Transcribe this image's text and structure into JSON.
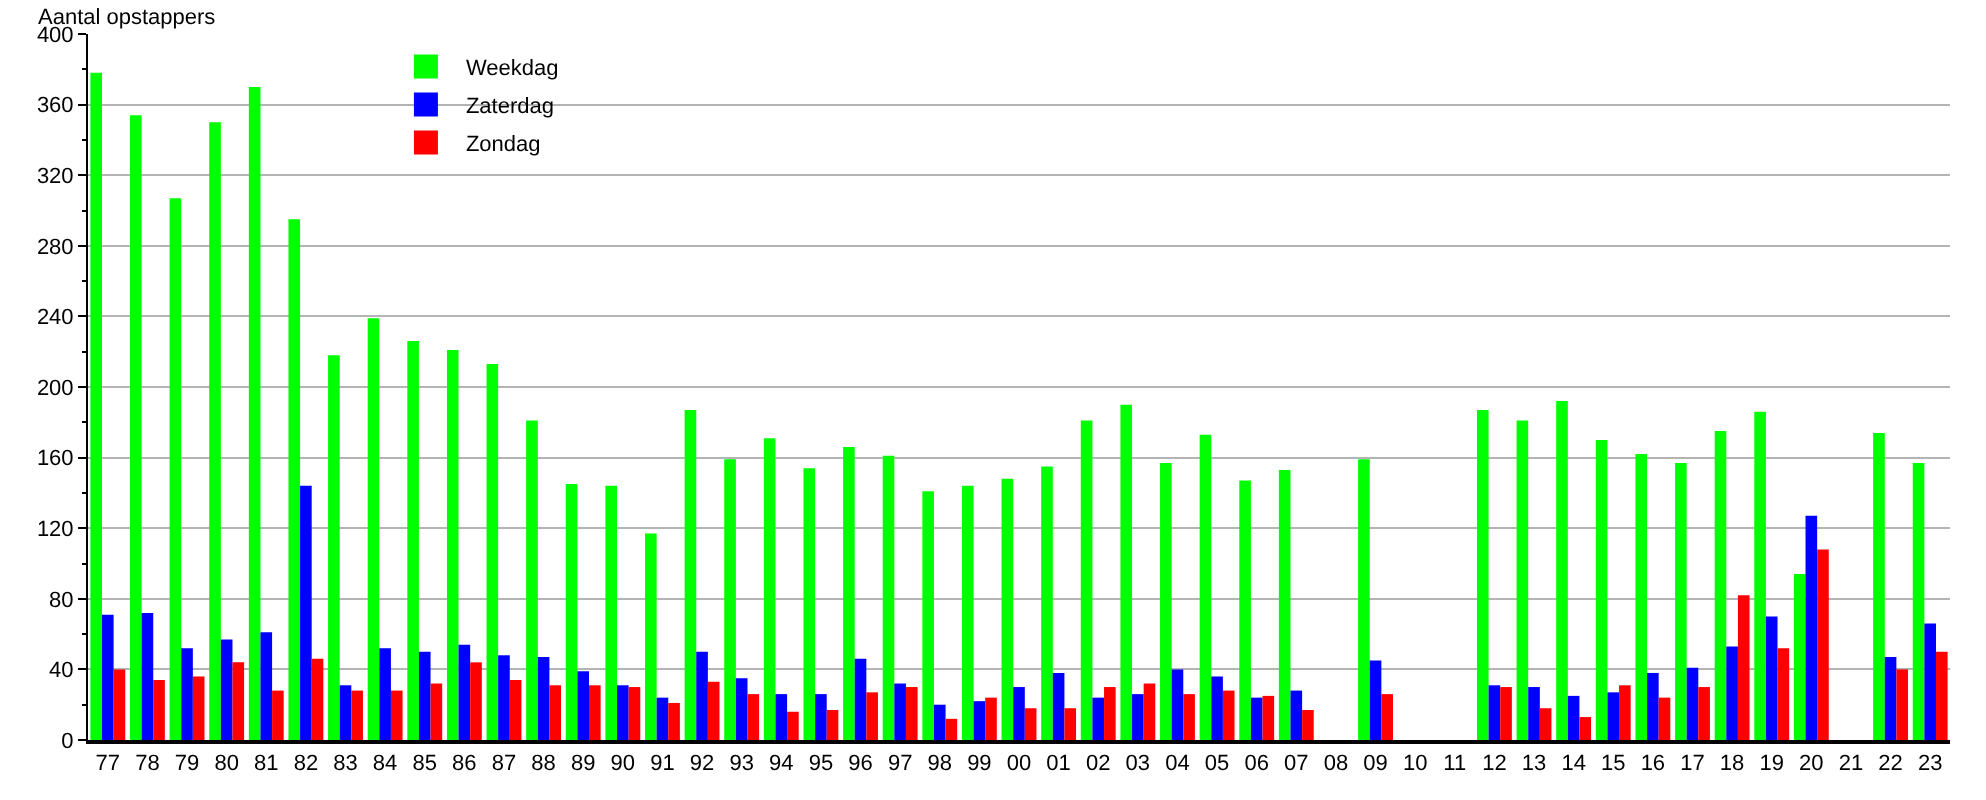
{
  "chart_data": {
    "type": "bar",
    "ylabel": "Aantal opstappers",
    "categories": [
      "77",
      "78",
      "79",
      "80",
      "81",
      "82",
      "83",
      "84",
      "85",
      "86",
      "87",
      "88",
      "89",
      "90",
      "91",
      "92",
      "93",
      "94",
      "95",
      "96",
      "97",
      "98",
      "99",
      "00",
      "01",
      "02",
      "03",
      "04",
      "05",
      "06",
      "07",
      "08",
      "09",
      "10",
      "11",
      "12",
      "13",
      "14",
      "15",
      "16",
      "17",
      "18",
      "19",
      "20",
      "21",
      "22",
      "23"
    ],
    "series": [
      {
        "name": "Weekdag",
        "color": "#00ff00",
        "values": [
          378,
          354,
          307,
          350,
          370,
          295,
          218,
          239,
          226,
          221,
          213,
          181,
          145,
          144,
          117,
          187,
          159,
          171,
          154,
          166,
          161,
          141,
          144,
          148,
          155,
          181,
          190,
          157,
          173,
          147,
          153,
          null,
          159,
          null,
          null,
          187,
          181,
          192,
          170,
          162,
          157,
          175,
          186,
          94,
          null,
          174,
          157
        ]
      },
      {
        "name": "Zaterdag",
        "color": "#0000ff",
        "values": [
          71,
          72,
          52,
          57,
          61,
          144,
          31,
          52,
          50,
          54,
          48,
          47,
          39,
          31,
          24,
          50,
          35,
          26,
          26,
          46,
          32,
          20,
          22,
          30,
          38,
          24,
          26,
          40,
          36,
          24,
          28,
          null,
          45,
          null,
          null,
          31,
          30,
          25,
          27,
          38,
          41,
          53,
          70,
          127,
          null,
          47,
          66
        ]
      },
      {
        "name": "Zondag",
        "color": "#ff0000",
        "values": [
          40,
          34,
          36,
          44,
          28,
          46,
          28,
          28,
          32,
          44,
          34,
          31,
          31,
          30,
          21,
          33,
          26,
          16,
          17,
          27,
          30,
          12,
          24,
          18,
          18,
          30,
          32,
          26,
          28,
          25,
          17,
          null,
          26,
          null,
          null,
          30,
          18,
          13,
          31,
          24,
          30,
          82,
          52,
          108,
          null,
          40,
          50
        ]
      }
    ],
    "ylim": [
      0,
      400
    ],
    "yticks": [
      0,
      {
        "value": 20,
        "label": null
      },
      40,
      {
        "value": 60,
        "label": null
      },
      80,
      {
        "value": 100,
        "label": null
      },
      120,
      {
        "value": 140,
        "label": null
      },
      160,
      {
        "value": 180,
        "label": null
      },
      200,
      {
        "value": 220,
        "label": null
      },
      240,
      {
        "value": 260,
        "label": null
      },
      280,
      {
        "value": 300,
        "label": null
      },
      320,
      {
        "value": 340,
        "label": null
      },
      360,
      {
        "value": 380,
        "label": null
      },
      400
    ],
    "grid": "y",
    "legend": "top left"
  }
}
